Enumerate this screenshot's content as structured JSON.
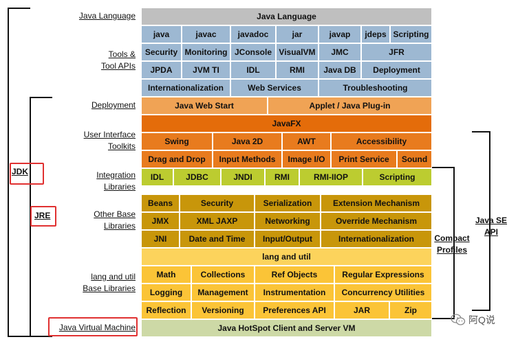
{
  "labels": {
    "java_language": [
      "Java Language"
    ],
    "tools": [
      "Tools &",
      "Tool APIs"
    ],
    "deployment": [
      "Deployment"
    ],
    "ui_toolkits": [
      "User Interface",
      "Toolkits"
    ],
    "integration": [
      "Integration",
      "Libraries"
    ],
    "other_base": [
      "Other Base",
      "Libraries"
    ],
    "lang_util": [
      "lang and util",
      "Base Libraries"
    ],
    "jvm": [
      "Java Virtual Machine"
    ]
  },
  "side": {
    "jdk": "JDK",
    "jre": "JRE",
    "compact": [
      "Compact",
      "Profiles"
    ],
    "java_se": [
      "Java SE",
      "API"
    ]
  },
  "cells": {
    "java_language": "Java Language",
    "tools_row1": [
      "java",
      "javac",
      "javadoc",
      "jar",
      "javap",
      "jdeps",
      "Scripting"
    ],
    "tools_row2": [
      "Security",
      "Monitoring",
      "JConsole",
      "VisualVM",
      "JMC",
      "JFR"
    ],
    "tools_row3": [
      "JPDA",
      "JVM TI",
      "IDL",
      "RMI",
      "Java DB",
      "Deployment"
    ],
    "tools_row4": [
      "Internationalization",
      "Web Services",
      "Troubleshooting"
    ],
    "deploy_row": [
      "Java Web Start",
      "Applet / Java Plug-in"
    ],
    "javafx": "JavaFX",
    "ui_row1": [
      "Swing",
      "Java 2D",
      "AWT",
      "Accessibility"
    ],
    "ui_row2": [
      "Drag and Drop",
      "Input Methods",
      "Image I/O",
      "Print Service",
      "Sound"
    ],
    "intg_row": [
      "IDL",
      "JDBC",
      "JNDI",
      "RMI",
      "RMI-IIOP",
      "Scripting"
    ],
    "base_row1": [
      "Beans",
      "Security",
      "Serialization",
      "Extension Mechanism"
    ],
    "base_row2": [
      "JMX",
      "XML JAXP",
      "Networking",
      "Override Mechanism"
    ],
    "base_row3": [
      "JNI",
      "Date and Time",
      "Input/Output",
      "Internationalization"
    ],
    "lang_util": "lang and util",
    "lang_row1": [
      "Math",
      "Collections",
      "Ref Objects",
      "Regular Expressions"
    ],
    "lang_row2": [
      "Logging",
      "Management",
      "Instrumentation",
      "Concurrency Utilities"
    ],
    "lang_row3": [
      "Reflection",
      "Versioning",
      "Preferences API",
      "JAR",
      "Zip"
    ],
    "jvm": "Java HotSpot Client and Server VM"
  },
  "watermark": "阿Q说",
  "icons": {
    "watermark": "wechat-icon"
  }
}
